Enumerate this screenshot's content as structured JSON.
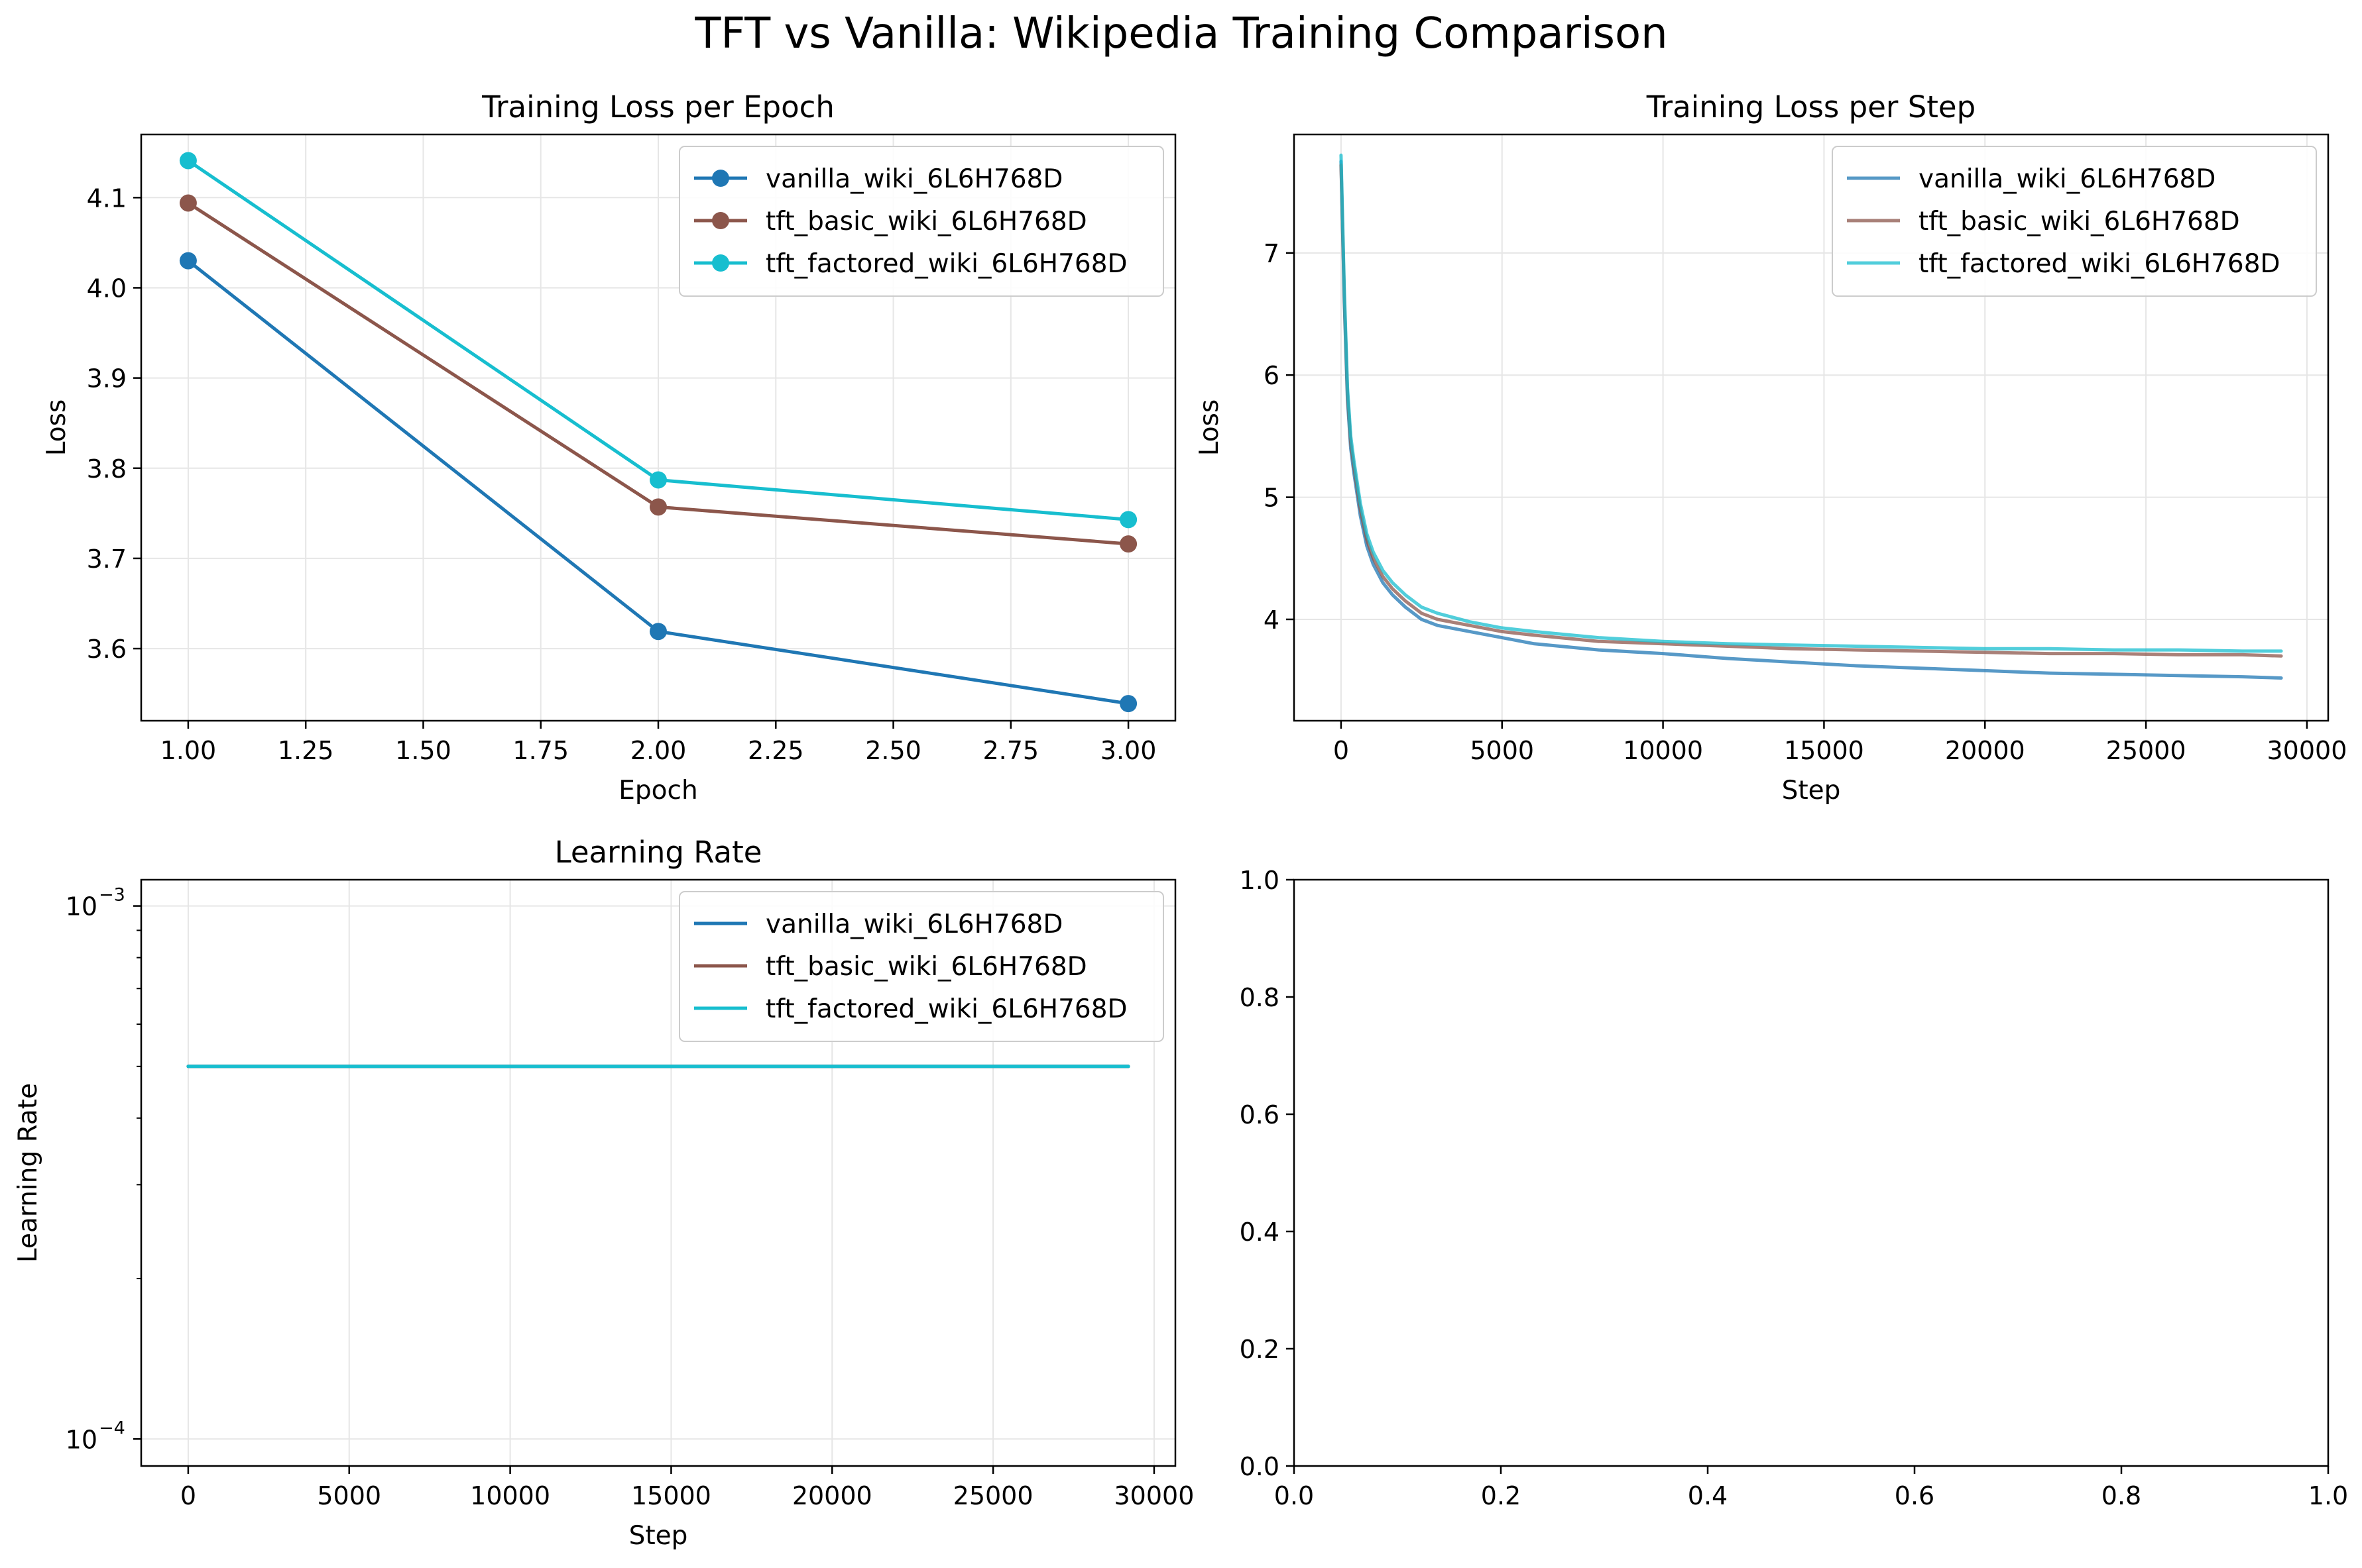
{
  "figure": {
    "suptitle": "TFT vs Vanilla: Wikipedia Training Comparison"
  },
  "colors": {
    "vanilla": "#1f77b4",
    "tft_basic": "#8c564b",
    "tft_factored": "#17becf",
    "grid": "#e6e6e6",
    "axis": "#000000"
  },
  "chart_data": [
    {
      "id": "epoch",
      "type": "line",
      "title": "Training Loss per Epoch",
      "xlabel": "Epoch",
      "ylabel": "Loss",
      "xlim": [
        0.9,
        3.1
      ],
      "ylim": [
        3.52,
        4.17
      ],
      "xticks": [
        1.0,
        1.25,
        1.5,
        1.75,
        2.0,
        2.25,
        2.5,
        2.75,
        3.0
      ],
      "xtick_labels": [
        "1.00",
        "1.25",
        "1.50",
        "1.75",
        "2.00",
        "2.25",
        "2.50",
        "2.75",
        "3.00"
      ],
      "yticks": [
        3.6,
        3.7,
        3.8,
        3.9,
        4.0,
        4.1
      ],
      "ytick_labels": [
        "3.6",
        "3.7",
        "3.8",
        "3.9",
        "4.0",
        "4.1"
      ],
      "grid": true,
      "legend": "upper right",
      "markers": true,
      "x": [
        1,
        2,
        3
      ],
      "series": [
        {
          "name": "vanilla_wiki_6L6H768D",
          "color_key": "vanilla",
          "values": [
            4.03,
            3.619,
            3.539
          ]
        },
        {
          "name": "tft_basic_wiki_6L6H768D",
          "color_key": "tft_basic",
          "values": [
            4.094,
            3.757,
            3.716
          ]
        },
        {
          "name": "tft_factored_wiki_6L6H768D",
          "color_key": "tft_factored",
          "values": [
            4.141,
            3.787,
            3.743
          ]
        }
      ]
    },
    {
      "id": "step",
      "type": "line",
      "title": "Training Loss per Step",
      "xlabel": "Step",
      "ylabel": "Loss",
      "xlim": [
        -1460,
        30660
      ],
      "ylim": [
        3.17,
        7.97
      ],
      "xticks": [
        0,
        5000,
        10000,
        15000,
        20000,
        25000,
        30000
      ],
      "xtick_labels": [
        "0",
        "5000",
        "10000",
        "15000",
        "20000",
        "25000",
        "30000"
      ],
      "yticks": [
        4,
        5,
        6,
        7
      ],
      "ytick_labels": [
        "4",
        "5",
        "6",
        "7"
      ],
      "grid": true,
      "legend": "upper right",
      "series_alpha": 0.75,
      "series": [
        {
          "name": "vanilla_wiki_6L6H768D",
          "color_key": "vanilla",
          "x": [
            0,
            100,
            200,
            300,
            400,
            600,
            800,
            1000,
            1300,
            1600,
            2000,
            2500,
            3000,
            4000,
            5000,
            6000,
            8000,
            10000,
            12000,
            14000,
            16000,
            18000,
            20000,
            22000,
            24000,
            26000,
            28000,
            29200
          ],
          "values": [
            7.75,
            6.6,
            5.8,
            5.4,
            5.2,
            4.85,
            4.6,
            4.45,
            4.3,
            4.2,
            4.1,
            4.0,
            3.95,
            3.9,
            3.85,
            3.8,
            3.75,
            3.72,
            3.68,
            3.65,
            3.62,
            3.6,
            3.58,
            3.56,
            3.55,
            3.54,
            3.53,
            3.52
          ]
        },
        {
          "name": "tft_basic_wiki_6L6H768D",
          "color_key": "tft_basic",
          "x": [
            0,
            100,
            200,
            300,
            400,
            600,
            800,
            1000,
            1300,
            1600,
            2000,
            2500,
            3000,
            4000,
            5000,
            6000,
            8000,
            10000,
            12000,
            14000,
            16000,
            18000,
            20000,
            22000,
            24000,
            26000,
            28000,
            29200
          ],
          "values": [
            7.72,
            6.65,
            5.85,
            5.45,
            5.25,
            4.9,
            4.65,
            4.5,
            4.35,
            4.25,
            4.15,
            4.05,
            4.0,
            3.95,
            3.9,
            3.87,
            3.82,
            3.8,
            3.78,
            3.76,
            3.75,
            3.74,
            3.73,
            3.72,
            3.72,
            3.71,
            3.71,
            3.7
          ]
        },
        {
          "name": "tft_factored_wiki_6L6H768D",
          "color_key": "tft_factored",
          "x": [
            0,
            100,
            200,
            300,
            400,
            600,
            800,
            1000,
            1300,
            1600,
            2000,
            2500,
            3000,
            4000,
            5000,
            6000,
            8000,
            10000,
            12000,
            14000,
            16000,
            18000,
            20000,
            22000,
            24000,
            26000,
            28000,
            29200
          ],
          "values": [
            7.8,
            6.7,
            5.9,
            5.5,
            5.3,
            4.95,
            4.7,
            4.55,
            4.4,
            4.3,
            4.2,
            4.1,
            4.05,
            3.98,
            3.93,
            3.9,
            3.85,
            3.82,
            3.8,
            3.79,
            3.78,
            3.77,
            3.76,
            3.76,
            3.75,
            3.75,
            3.74,
            3.74
          ]
        }
      ]
    },
    {
      "id": "lr",
      "type": "line",
      "title": "Learning Rate",
      "xlabel": "Step",
      "ylabel": "Learning Rate",
      "yscale": "log",
      "xlim": [
        -1460,
        30660
      ],
      "ylim": [
        8.9e-05,
        0.00112
      ],
      "xticks": [
        0,
        5000,
        10000,
        15000,
        20000,
        25000,
        30000
      ],
      "xtick_labels": [
        "0",
        "5000",
        "10000",
        "15000",
        "20000",
        "25000",
        "30000"
      ],
      "yticks_major": [
        0.0001,
        0.001
      ],
      "ytick_labels": [
        "10",
        "10"
      ],
      "ytick_exponents": [
        "−4",
        "−3"
      ],
      "yticks_minor": [
        0.0002,
        0.0003,
        0.0004,
        0.0005,
        0.0006,
        0.0007,
        0.0008,
        0.0009
      ],
      "grid": true,
      "legend": "upper right",
      "series": [
        {
          "name": "vanilla_wiki_6L6H768D",
          "color_key": "vanilla",
          "x": [
            0,
            29200
          ],
          "values": [
            0.0005,
            0.0005
          ]
        },
        {
          "name": "tft_basic_wiki_6L6H768D",
          "color_key": "tft_basic",
          "x": [
            0,
            29200
          ],
          "values": [
            0.0005,
            0.0005
          ]
        },
        {
          "name": "tft_factored_wiki_6L6H768D",
          "color_key": "tft_factored",
          "x": [
            0,
            29200
          ],
          "values": [
            0.0005,
            0.0005
          ]
        }
      ]
    },
    {
      "id": "empty",
      "type": "line",
      "title": "",
      "xlim": [
        0,
        1
      ],
      "ylim": [
        0,
        1
      ],
      "xticks": [
        0,
        0.2,
        0.4,
        0.6,
        0.8,
        1.0
      ],
      "xtick_labels": [
        "0.0",
        "0.2",
        "0.4",
        "0.6",
        "0.8",
        "1.0"
      ],
      "yticks": [
        0,
        0.2,
        0.4,
        0.6,
        0.8,
        1.0
      ],
      "ytick_labels": [
        "0.0",
        "0.2",
        "0.4",
        "0.6",
        "0.8",
        "1.0"
      ],
      "grid": false,
      "series": []
    }
  ]
}
